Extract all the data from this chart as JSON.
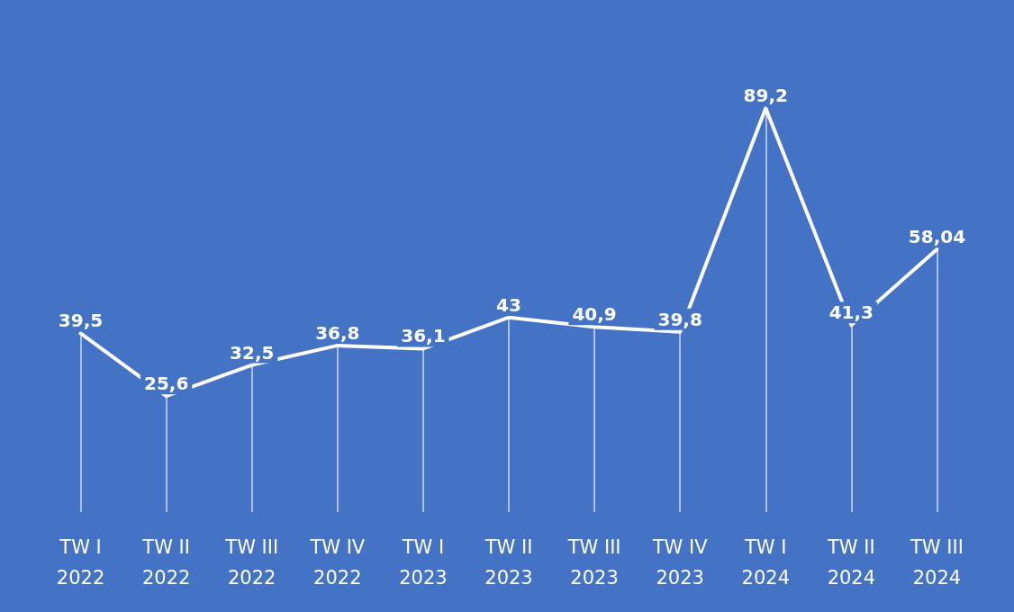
{
  "chart_data": {
    "type": "line",
    "categories": [
      "TW I\n2022",
      "TW II\n2022",
      "TW III\n2022",
      "TW IV\n2022",
      "TW I\n2023",
      "TW II\n2023",
      "TW III\n2023",
      "TW IV\n2023",
      "TW I\n2024",
      "TW II\n2024",
      "TW III\n2024"
    ],
    "series": [
      {
        "color": "#ffffff",
        "values": [
          39.5,
          25.6,
          32.5,
          36.8,
          36.1,
          43,
          40.9,
          39.8,
          89.2,
          41.3,
          58.04
        ],
        "value_labels": [
          "39,5",
          "25,6",
          "32,5",
          "36,8",
          "36,1",
          "43",
          "40,9",
          "39,8",
          "89,2",
          "41,3",
          "58,04"
        ]
      }
    ],
    "marker": "none",
    "line_style": "solid",
    "tick_labels": "x"
  }
}
